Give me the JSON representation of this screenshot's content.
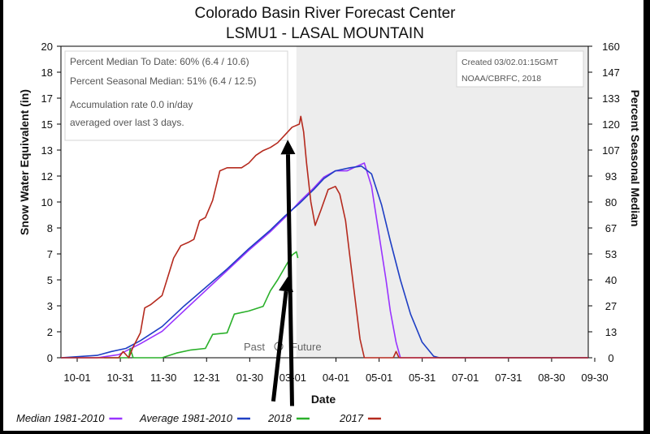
{
  "chart_data": {
    "type": "line",
    "title": "Colorado Basin River Forecast Center",
    "subtitle": "LSMU1 - LASAL MOUNTAIN",
    "xlabel": "Date",
    "ylabel": "Snow Water Equivalent (in)",
    "y2label": "Percent Seasonal Median",
    "ylim": [
      0,
      20
    ],
    "y_ticks": [
      "20",
      "18",
      "17",
      "15",
      "13",
      "12",
      "10",
      "8",
      "7",
      "5",
      "3",
      "2",
      "0"
    ],
    "y2_ticks": [
      "160",
      "147",
      "133",
      "120",
      "107",
      "93",
      "80",
      "67",
      "53",
      "40",
      "27",
      "13",
      "0"
    ],
    "x_ticks": [
      "10-01",
      "10-31",
      "11-30",
      "12-31",
      "01-30",
      "03-01",
      "04-01",
      "05-01",
      "05-31",
      "07-01",
      "07-31",
      "08-30",
      "09-30"
    ],
    "grid": false,
    "info_lines": [
      "Percent Median To Date: 60% (6.4 / 10.6)",
      "Percent Seasonal Median: 51% (6.4 / 12.5)",
      "Accumulation rate 0.0 in/day",
      "averaged over last 3 days."
    ],
    "created": "Created 03/02.01:15GMT",
    "credit": "NOAA/CBRFC, 2018",
    "past_label": "Past",
    "future_label": "Future",
    "legend": [
      {
        "label": "Median 1981-2010",
        "color": "#9933ff"
      },
      {
        "label": "Average 1981-2010",
        "color": "#1f3fc4"
      },
      {
        "label": "2018",
        "color": "#2ab02a"
      },
      {
        "label": "2017",
        "color": "#b52a1e"
      }
    ],
    "series": [
      {
        "name": "Median 1981-2010",
        "color": "#9933ff",
        "points": [
          [
            0,
            0
          ],
          [
            25,
            0
          ],
          [
            40,
            0.2
          ],
          [
            55,
            0.9
          ],
          [
            70,
            1.7
          ],
          [
            85,
            3.0
          ],
          [
            100,
            4.3
          ],
          [
            115,
            5.6
          ],
          [
            130,
            6.9
          ],
          [
            145,
            8.1
          ],
          [
            155,
            9.0
          ],
          [
            165,
            10.0
          ],
          [
            175,
            10.9
          ],
          [
            182,
            11.6
          ],
          [
            190,
            12.0
          ],
          [
            198,
            12.0
          ],
          [
            205,
            12.3
          ],
          [
            210,
            12.5
          ],
          [
            215,
            11.0
          ],
          [
            220,
            8.0
          ],
          [
            225,
            5.0
          ],
          [
            228,
            3.0
          ],
          [
            232,
            1.0
          ],
          [
            235,
            0
          ],
          [
            365,
            0
          ]
        ]
      },
      {
        "name": "Average 1981-2010",
        "color": "#1f3fc4",
        "points": [
          [
            0,
            0
          ],
          [
            25,
            0.15
          ],
          [
            35,
            0.4
          ],
          [
            45,
            0.6
          ],
          [
            55,
            1.1
          ],
          [
            70,
            2.0
          ],
          [
            85,
            3.3
          ],
          [
            100,
            4.5
          ],
          [
            115,
            5.7
          ],
          [
            130,
            7.0
          ],
          [
            145,
            8.2
          ],
          [
            155,
            9.1
          ],
          [
            165,
            9.9
          ],
          [
            175,
            10.8
          ],
          [
            182,
            11.5
          ],
          [
            190,
            12.0
          ],
          [
            200,
            12.2
          ],
          [
            208,
            12.3
          ],
          [
            215,
            11.8
          ],
          [
            222,
            9.8
          ],
          [
            228,
            7.5
          ],
          [
            235,
            5.0
          ],
          [
            242,
            2.8
          ],
          [
            250,
            1.0
          ],
          [
            258,
            0.1
          ],
          [
            262,
            0
          ],
          [
            365,
            0
          ]
        ]
      },
      {
        "name": "2018",
        "color": "#2ab02a",
        "points": [
          [
            30,
            0
          ],
          [
            47,
            0
          ],
          [
            48,
            0.6
          ],
          [
            50,
            0
          ],
          [
            60,
            0
          ],
          [
            70,
            0
          ],
          [
            80,
            0.3
          ],
          [
            90,
            0.5
          ],
          [
            100,
            0.6
          ],
          [
            105,
            1.5
          ],
          [
            115,
            1.6
          ],
          [
            120,
            2.8
          ],
          [
            130,
            3.0
          ],
          [
            140,
            3.3
          ],
          [
            145,
            4.3
          ],
          [
            150,
            5.0
          ],
          [
            155,
            5.8
          ],
          [
            160,
            6.6
          ],
          [
            163,
            6.8
          ],
          [
            164,
            6.4
          ]
        ]
      },
      {
        "name": "2017",
        "color": "#b52a1e",
        "points": [
          [
            0,
            0
          ],
          [
            40,
            0
          ],
          [
            43,
            0.4
          ],
          [
            47,
            0
          ],
          [
            50,
            0.7
          ],
          [
            55,
            1.6
          ],
          [
            58,
            3.2
          ],
          [
            62,
            3.4
          ],
          [
            70,
            4.0
          ],
          [
            75,
            5.5
          ],
          [
            78,
            6.4
          ],
          [
            83,
            7.2
          ],
          [
            88,
            7.4
          ],
          [
            92,
            7.6
          ],
          [
            96,
            8.8
          ],
          [
            100,
            9.0
          ],
          [
            105,
            10.1
          ],
          [
            110,
            12.0
          ],
          [
            115,
            12.2
          ],
          [
            120,
            12.2
          ],
          [
            125,
            12.2
          ],
          [
            130,
            12.5
          ],
          [
            135,
            13.0
          ],
          [
            140,
            13.3
          ],
          [
            145,
            13.5
          ],
          [
            150,
            13.8
          ],
          [
            155,
            14.3
          ],
          [
            160,
            14.8
          ],
          [
            165,
            15.0
          ],
          [
            166,
            15.5
          ],
          [
            168,
            14.5
          ],
          [
            170,
            12.5
          ],
          [
            173,
            10.0
          ],
          [
            176,
            8.5
          ],
          [
            180,
            9.5
          ],
          [
            185,
            10.8
          ],
          [
            190,
            11.0
          ],
          [
            193,
            10.5
          ],
          [
            197,
            8.8
          ],
          [
            200,
            6.5
          ],
          [
            204,
            3.5
          ],
          [
            207,
            1.2
          ],
          [
            210,
            0
          ],
          [
            230,
            0
          ],
          [
            232,
            0.4
          ],
          [
            234,
            0
          ],
          [
            365,
            0
          ]
        ]
      }
    ],
    "arrows": [
      {
        "tail": [
          160,
          -3.1
        ],
        "head": [
          157,
          14.0
        ]
      },
      {
        "tail": [
          147,
          -2.8
        ],
        "head": [
          157,
          5.2
        ]
      }
    ]
  }
}
